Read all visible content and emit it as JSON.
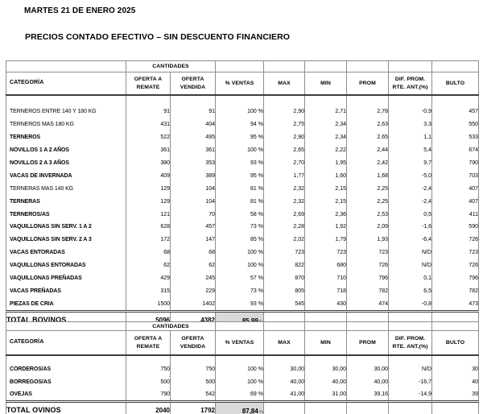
{
  "page": {
    "date_title": "MARTES 21 DE ENERO 2025",
    "main_title": "PRECIOS CONTADO EFECTIVO – SIN DESCUENTO FINANCIERO"
  },
  "header": {
    "categoria": "CATEGORÍA",
    "cantidades": "CANTIDADES",
    "cols": {
      "oferta_remate": "OFERTA A\nREMATE",
      "oferta_vendida": "OFERTA\nVENDIDA",
      "ventas": "% VENTAS",
      "max": "MAX",
      "min": "MIN",
      "prom": "PROM",
      "dif": "DIF. PROM.\nRTE. ANT.(%)",
      "bulto": "BULTO"
    }
  },
  "bovinos": {
    "rows": [
      {
        "label": "TERNEROS ENTRE 140 Y 180 KG",
        "bold": false,
        "cells": [
          "91",
          "91",
          "100 %",
          "2,90",
          "2,71",
          "2,78",
          "-0,9",
          "457"
        ]
      },
      {
        "label": "TERNEROS MAS 180 KG",
        "bold": false,
        "cells": [
          "431",
          "404",
          "94 %",
          "2,75",
          "2,34",
          "2,63",
          "3,3",
          "550"
        ]
      },
      {
        "label": "TERNEROS",
        "bold": true,
        "cells": [
          "522",
          "495",
          "95 %",
          "2,90",
          "2,34",
          "2,65",
          "1,1",
          "533"
        ]
      },
      {
        "label": "NOVILLOS 1 A 2 AÑOS",
        "bold": true,
        "cells": [
          "361",
          "361",
          "100 %",
          "2,65",
          "2,22",
          "2,44",
          "5,4",
          "674"
        ]
      },
      {
        "label": "NOVILLOS 2 A 3 AÑOS",
        "bold": true,
        "cells": [
          "380",
          "353",
          "93 %",
          "2,70",
          "1,95",
          "2,42",
          "9,7",
          "790"
        ]
      },
      {
        "label": "VACAS DE INVERNADA",
        "bold": true,
        "cells": [
          "409",
          "389",
          "95 %",
          "1,77",
          "1,60",
          "1,68",
          "-5,0",
          "703"
        ]
      },
      {
        "label": "TERNERAS MAS 140 KG",
        "bold": false,
        "cells": [
          "129",
          "104",
          "81 %",
          "2,32",
          "2,15",
          "2,25",
          "-2,4",
          "407"
        ]
      },
      {
        "label": "TERNERAS",
        "bold": true,
        "cells": [
          "129",
          "104",
          "81 %",
          "2,32",
          "2,15",
          "2,25",
          "-2,4",
          "407"
        ]
      },
      {
        "label": "TERNEROS/AS",
        "bold": true,
        "cells": [
          "121",
          "70",
          "58 %",
          "2,69",
          "2,36",
          "2,53",
          "0,5",
          "411"
        ]
      },
      {
        "label": "VAQUILLONAS SIN SERV. 1 A 2",
        "bold": true,
        "cells": [
          "628",
          "457",
          "73 %",
          "2,28",
          "1,92",
          "2,09",
          "-1,6",
          "590"
        ]
      },
      {
        "label": "VAQUILLONAS SIN SERV. 2 A 3",
        "bold": true,
        "cells": [
          "172",
          "147",
          "85 %",
          "2,02",
          "1,79",
          "1,93",
          "-6,4",
          "726"
        ]
      },
      {
        "label": "VACAS ENTORADAS",
        "bold": true,
        "cells": [
          "68",
          "68",
          "100 %",
          "723",
          "723",
          "723",
          "N/D",
          "723"
        ]
      },
      {
        "label": "VAQUILLONAS ENTORADAS",
        "bold": true,
        "cells": [
          "62",
          "62",
          "100 %",
          "822",
          "680",
          "726",
          "N/D",
          "726"
        ]
      },
      {
        "label": "VAQUILLONAS PREÑADAS",
        "bold": true,
        "cells": [
          "429",
          "245",
          "57 %",
          "870",
          "710",
          "796",
          "0,1",
          "796"
        ]
      },
      {
        "label": "VACAS PREÑADAS",
        "bold": true,
        "cells": [
          "315",
          "229",
          "73 %",
          "805",
          "718",
          "782",
          "6,5",
          "782"
        ]
      },
      {
        "label": "PIEZAS DE CRIA",
        "bold": true,
        "cells": [
          "1500",
          "1402",
          "93 %",
          "545",
          "430",
          "474",
          "-0,8",
          "473"
        ]
      }
    ],
    "total": {
      "label": "TOTAL BOVINOS",
      "oferta_remate": "5096",
      "oferta_vendida": "4382",
      "ventas_pct": "85,99",
      "pct_sign": "%"
    }
  },
  "ovinos": {
    "rows": [
      {
        "label": "CORDEROS/AS",
        "bold": true,
        "cells": [
          "750",
          "750",
          "100 %",
          "30,00",
          "30,00",
          "30,00",
          "N/D",
          "30"
        ]
      },
      {
        "label": "BORREGOS/AS",
        "bold": true,
        "cells": [
          "500",
          "500",
          "100 %",
          "40,00",
          "40,00",
          "40,00",
          "-16,7",
          "40"
        ]
      },
      {
        "label": "OVEJAS",
        "bold": true,
        "cells": [
          "790",
          "542",
          "69 %",
          "41,00",
          "31,00",
          "39,16",
          "-14,9",
          "39"
        ]
      }
    ],
    "total": {
      "label": "TOTAL OVINOS",
      "oferta_remate": "2040",
      "oferta_vendida": "1792",
      "ventas_pct": "87,84",
      "pct_sign": "%"
    }
  }
}
